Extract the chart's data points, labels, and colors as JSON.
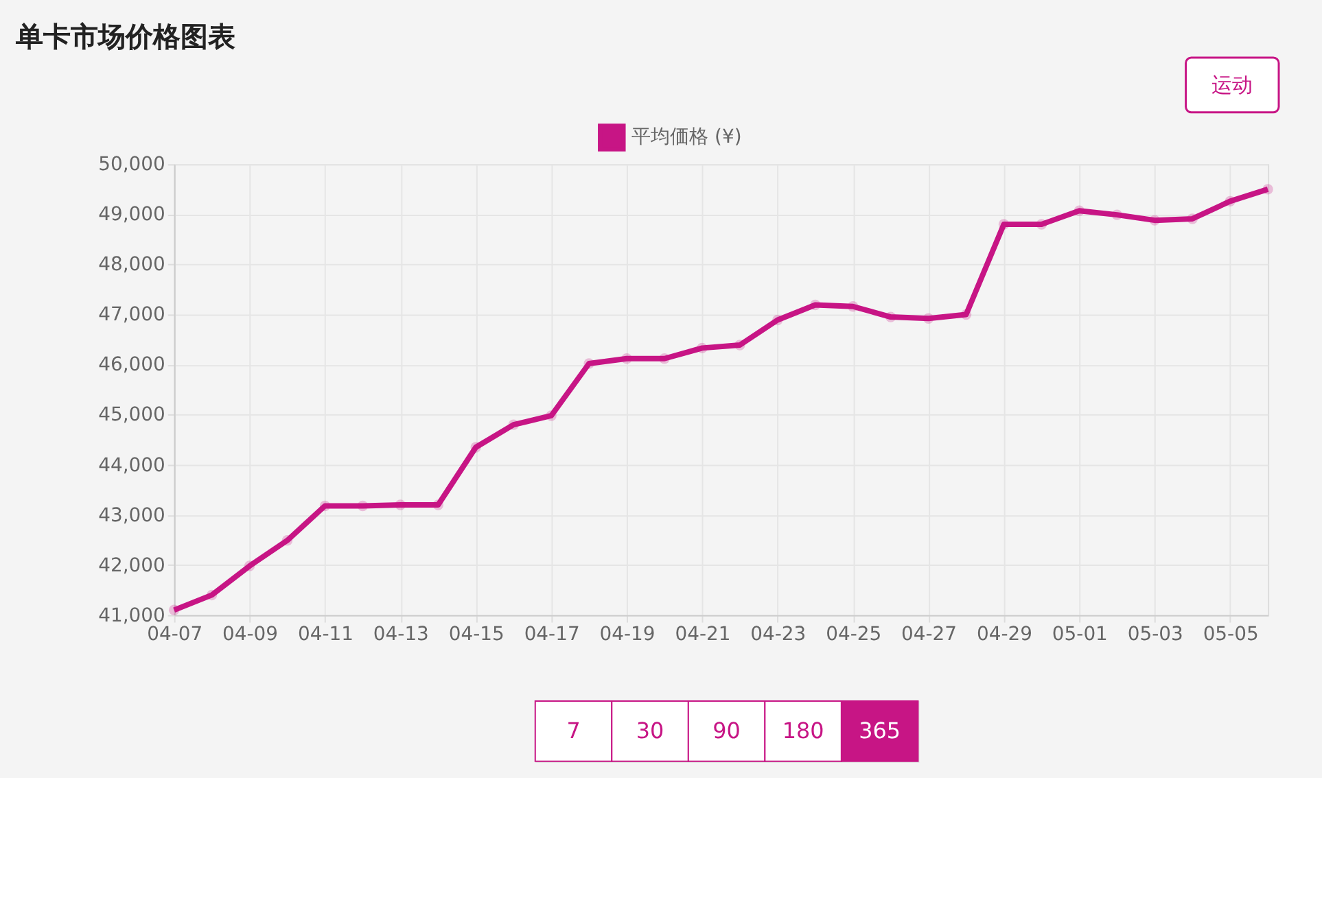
{
  "chart_data": {
    "type": "line",
    "title": "单卡市场价格图表",
    "categories": [
      "04-07",
      null,
      "04-09",
      null,
      "04-11",
      null,
      "04-13",
      null,
      "04-15",
      null,
      "04-17",
      null,
      "04-19",
      null,
      "04-21",
      null,
      "04-23",
      null,
      "04-25",
      null,
      "04-27",
      null,
      "04-29",
      null,
      "05-01",
      null,
      "05-03",
      null,
      "05-05",
      null
    ],
    "series": [
      {
        "name": "平均価格 (¥)",
        "color": "#c71585",
        "values": [
          41100,
          41400,
          41980,
          42490,
          43180,
          43180,
          43200,
          43200,
          44350,
          44800,
          44980,
          46020,
          46120,
          46120,
          46330,
          46390,
          46890,
          47190,
          47160,
          46950,
          46920,
          47000,
          48800,
          48800,
          49070,
          48990,
          48880,
          48910,
          49260,
          49500
        ]
      }
    ],
    "ylim": [
      41000,
      50000
    ],
    "yticks": [
      {
        "value": 41000,
        "label": "41,000"
      },
      {
        "value": 42000,
        "label": "42,000"
      },
      {
        "value": 43000,
        "label": "43,000"
      },
      {
        "value": 44000,
        "label": "44,000"
      },
      {
        "value": 45000,
        "label": "45,000"
      },
      {
        "value": 46000,
        "label": "46,000"
      },
      {
        "value": 47000,
        "label": "47,000"
      },
      {
        "value": 48000,
        "label": "48,000"
      },
      {
        "value": 49000,
        "label": "49,000"
      },
      {
        "value": 50000,
        "label": "50,000"
      }
    ],
    "grid": true,
    "legend": "top",
    "marker": "circle",
    "line_style": "solid",
    "annotations": [
      "运动",
      "7",
      "30",
      "90",
      "180",
      "365"
    ]
  }
}
